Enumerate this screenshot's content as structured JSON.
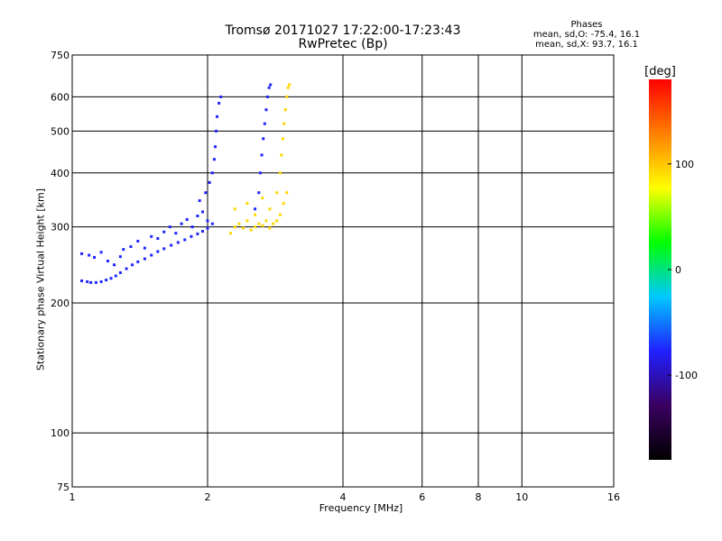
{
  "header": {
    "title_line1": "Tromsø 20171027 17:22:00-17:23:43",
    "title_line2": "RwPretec (Bp)"
  },
  "stats": {
    "heading": "Phases",
    "line_o": "mean, sd,O: -75.4, 16.1",
    "line_x": "mean, sd,X:  93.7, 16.1"
  },
  "chart_data": {
    "type": "scatter",
    "title": "Tromsø 20171027 17:22:00-17:23:43",
    "subtitle": "RwPretec (Bp)",
    "xlabel": "Frequency [MHz]",
    "ylabel": "Stationary phase Virtual Height [km]",
    "x_scale": "log",
    "y_scale": "log",
    "xlim": [
      1,
      16
    ],
    "ylim": [
      75,
      750
    ],
    "x_ticks": [
      1,
      2,
      4,
      6,
      8,
      10,
      16
    ],
    "y_ticks": [
      75,
      100,
      200,
      300,
      400,
      500,
      600,
      750
    ],
    "x_gridlines": [
      2,
      4,
      6,
      8,
      10
    ],
    "y_gridlines": [
      100,
      200,
      300,
      400,
      500,
      600
    ],
    "colorbar": {
      "label": "[deg]",
      "range": [
        -180,
        180
      ],
      "ticks": [
        -100,
        0,
        100
      ],
      "colors": [
        "#000000",
        "#3a0060",
        "#2020ff",
        "#00c8ff",
        "#00ff00",
        "#ffff00",
        "#ff8000",
        "#ff0000"
      ]
    },
    "series": [
      {
        "name": "O",
        "points": [
          [
            1.05,
            225
          ],
          [
            1.08,
            224
          ],
          [
            1.1,
            223
          ],
          [
            1.13,
            223
          ],
          [
            1.16,
            224
          ],
          [
            1.19,
            226
          ],
          [
            1.22,
            228
          ],
          [
            1.25,
            231
          ],
          [
            1.28,
            235
          ],
          [
            1.32,
            240
          ],
          [
            1.36,
            245
          ],
          [
            1.4,
            249
          ],
          [
            1.45,
            253
          ],
          [
            1.5,
            258
          ],
          [
            1.55,
            263
          ],
          [
            1.6,
            267
          ],
          [
            1.66,
            272
          ],
          [
            1.72,
            276
          ],
          [
            1.78,
            280
          ],
          [
            1.84,
            285
          ],
          [
            1.9,
            289
          ],
          [
            1.95,
            293
          ],
          [
            2.0,
            298
          ],
          [
            2.05,
            305
          ],
          [
            1.05,
            260
          ],
          [
            1.09,
            258
          ],
          [
            1.12,
            255
          ],
          [
            1.16,
            262
          ],
          [
            1.2,
            250
          ],
          [
            1.24,
            245
          ],
          [
            1.28,
            256
          ],
          [
            1.3,
            266
          ],
          [
            1.35,
            270
          ],
          [
            1.4,
            278
          ],
          [
            1.45,
            268
          ],
          [
            1.5,
            285
          ],
          [
            1.55,
            282
          ],
          [
            1.6,
            292
          ],
          [
            1.65,
            300
          ],
          [
            1.7,
            290
          ],
          [
            1.75,
            305
          ],
          [
            1.8,
            312
          ],
          [
            1.85,
            300
          ],
          [
            1.9,
            318
          ],
          [
            1.95,
            325
          ],
          [
            2.0,
            310
          ],
          [
            1.92,
            345
          ],
          [
            1.98,
            360
          ],
          [
            2.02,
            380
          ],
          [
            2.05,
            400
          ],
          [
            2.07,
            430
          ],
          [
            2.08,
            460
          ],
          [
            2.09,
            500
          ],
          [
            2.1,
            540
          ],
          [
            2.12,
            580
          ],
          [
            2.14,
            600
          ],
          [
            2.55,
            330
          ],
          [
            2.6,
            360
          ],
          [
            2.62,
            400
          ],
          [
            2.64,
            440
          ],
          [
            2.66,
            480
          ],
          [
            2.68,
            520
          ],
          [
            2.7,
            560
          ],
          [
            2.72,
            600
          ],
          [
            2.74,
            630
          ],
          [
            2.76,
            640
          ]
        ]
      },
      {
        "name": "X",
        "points": [
          [
            2.25,
            290
          ],
          [
            2.3,
            300
          ],
          [
            2.35,
            305
          ],
          [
            2.4,
            298
          ],
          [
            2.45,
            310
          ],
          [
            2.5,
            295
          ],
          [
            2.55,
            300
          ],
          [
            2.6,
            305
          ],
          [
            2.65,
            302
          ],
          [
            2.7,
            310
          ],
          [
            2.75,
            298
          ],
          [
            2.8,
            305
          ],
          [
            2.85,
            310
          ],
          [
            2.9,
            320
          ],
          [
            2.95,
            340
          ],
          [
            3.0,
            360
          ],
          [
            2.3,
            330
          ],
          [
            2.45,
            340
          ],
          [
            2.55,
            320
          ],
          [
            2.65,
            350
          ],
          [
            2.75,
            330
          ],
          [
            2.85,
            360
          ],
          [
            2.9,
            400
          ],
          [
            2.92,
            440
          ],
          [
            2.94,
            480
          ],
          [
            2.96,
            520
          ],
          [
            2.98,
            560
          ],
          [
            3.0,
            600
          ],
          [
            3.02,
            630
          ],
          [
            3.04,
            640
          ]
        ]
      }
    ]
  }
}
